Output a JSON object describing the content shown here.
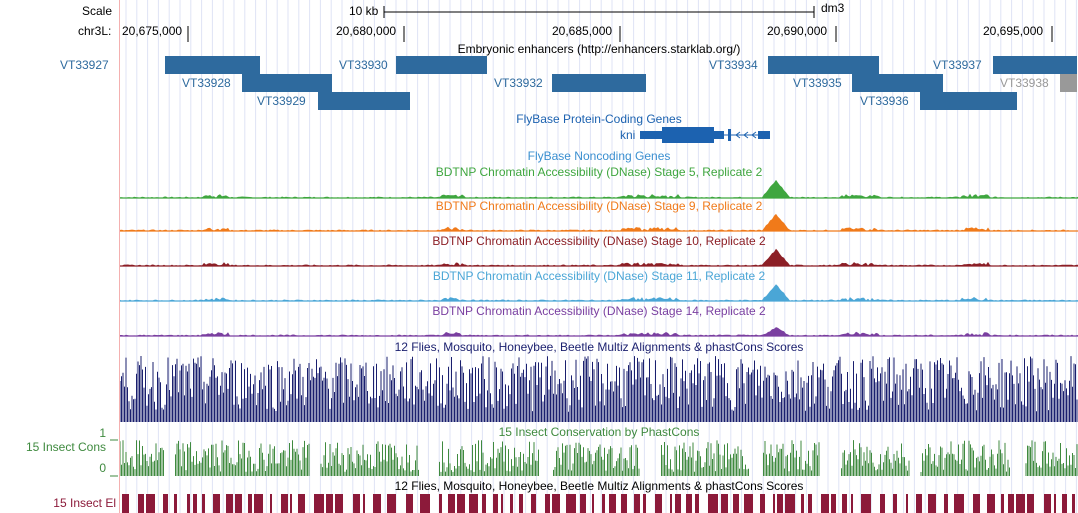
{
  "ruler": {
    "scale_label": "Scale",
    "scale_value": "10 kb",
    "assembly": "dm3",
    "chrom_label": "chr3L:",
    "positions": [
      "20,675,000",
      "20,680,000",
      "20,685,000",
      "20,690,000",
      "20,695,000"
    ]
  },
  "enhancers": {
    "title": "Embryonic enhancers (http://enhancers.starklab.org/)",
    "feature_color": "#2e6a9e",
    "faded_color": "#999999",
    "items": [
      "VT33927",
      "VT33928",
      "VT33929",
      "VT33930",
      "VT33932",
      "VT33934",
      "VT33935",
      "VT33936",
      "VT33937",
      "VT33938"
    ]
  },
  "genes": {
    "title": "FlyBase Protein-Coding Genes",
    "gene_name": "kni",
    "color": "#1c62b0"
  },
  "noncoding": {
    "title": "FlyBase Noncoding Genes"
  },
  "dnase": [
    {
      "title": "BDTNP Chromatin Accessibility (DNase) Stage 5, Replicate 2",
      "color": "#3fa63f"
    },
    {
      "title": "BDTNP Chromatin Accessibility (DNase) Stage 9, Replicate 2",
      "color": "#f07a1a"
    },
    {
      "title": "BDTNP Chromatin Accessibility (DNase) Stage 10, Replicate 2",
      "color": "#8c1f26"
    },
    {
      "title": "BDTNP Chromatin Accessibility (DNase) Stage 11, Replicate 2",
      "color": "#4aa6d6"
    },
    {
      "title": "BDTNP Chromatin Accessibility (DNase) Stage 14, Replicate 2",
      "color": "#7a3fa0"
    }
  ],
  "multiz": {
    "title": "12 Flies, Mosquito, Honeybee, Beetle Multiz Alignments & phastCons Scores",
    "color": "#1a1f6e"
  },
  "cons": {
    "title": "15 Insect Conservation by PhastCons",
    "left_label": "15 Insect Cons",
    "ymax": "1",
    "ymin": "0",
    "color": "#3f8a3f"
  },
  "elements": {
    "title": "12 Flies, Mosquito, Honeybee, Beetle Multiz Alignments & phastCons Scores",
    "left_label": "15 Insect El",
    "color": "#8c1a3a"
  }
}
